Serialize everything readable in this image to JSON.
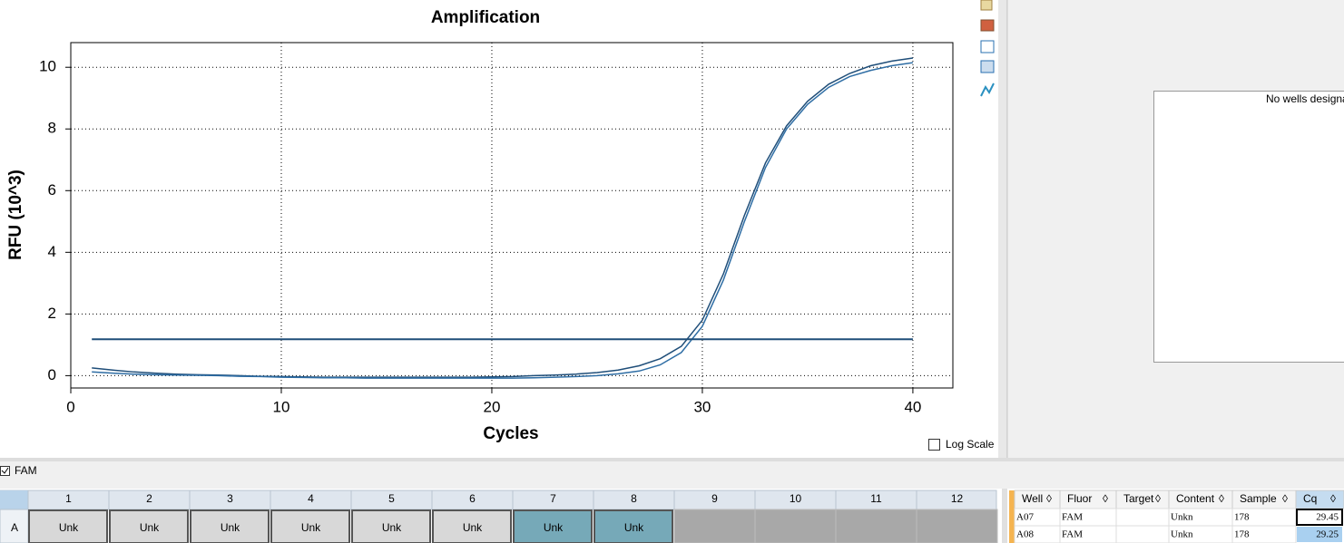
{
  "chart_data": {
    "type": "line",
    "title": "Amplification",
    "x_label": "Cycles",
    "y_label": "RFU (10^3)",
    "x": [
      1,
      2,
      3,
      4,
      5,
      6,
      7,
      8,
      9,
      10,
      11,
      12,
      13,
      14,
      15,
      16,
      17,
      18,
      19,
      20,
      21,
      22,
      23,
      24,
      25,
      26,
      27,
      28,
      29,
      30,
      31,
      32,
      33,
      34,
      35,
      36,
      37,
      38,
      39,
      40
    ],
    "series": [
      {
        "color": "#1f4e79",
        "values": [
          0.25,
          0.18,
          0.12,
          0.08,
          0.05,
          0.03,
          0.02,
          0.0,
          -0.02,
          -0.03,
          -0.04,
          -0.05,
          -0.05,
          -0.05,
          -0.05,
          -0.05,
          -0.05,
          -0.05,
          -0.05,
          -0.04,
          -0.03,
          0.0,
          0.02,
          0.05,
          0.1,
          0.18,
          0.32,
          0.55,
          0.95,
          1.8,
          3.3,
          5.2,
          6.9,
          8.1,
          8.9,
          9.45,
          9.8,
          10.05,
          10.2,
          10.3
        ]
      },
      {
        "color": "#2e6da4",
        "values": [
          0.12,
          0.08,
          0.05,
          0.03,
          0.02,
          0.01,
          0.0,
          -0.02,
          -0.03,
          -0.05,
          -0.06,
          -0.07,
          -0.07,
          -0.08,
          -0.08,
          -0.08,
          -0.08,
          -0.08,
          -0.08,
          -0.08,
          -0.08,
          -0.07,
          -0.05,
          -0.03,
          0.0,
          0.06,
          0.15,
          0.35,
          0.75,
          1.6,
          3.1,
          5.0,
          6.75,
          8.0,
          8.8,
          9.35,
          9.7,
          9.9,
          10.05,
          10.15
        ]
      }
    ],
    "threshold": 1.18,
    "threshold_color": "#1f4e79",
    "xlim": [
      0,
      41.9
    ],
    "ylim": [
      -0.4,
      10.8
    ],
    "xticks": [
      0,
      10,
      20,
      30,
      40
    ],
    "yticks": [
      0,
      2,
      4,
      6,
      8,
      10
    ],
    "grid": true,
    "log_scale": false,
    "log_scale_label": "Log Scale"
  },
  "side_panel": {
    "message": "No wells designate"
  },
  "fluor_filter": {
    "label": "FAM"
  },
  "plate": {
    "row": "A",
    "columns": [
      1,
      2,
      3,
      4,
      5,
      6,
      7,
      8,
      9,
      10,
      11,
      12
    ],
    "cells": [
      {
        "label": "Unk",
        "selected": false
      },
      {
        "label": "Unk",
        "selected": false
      },
      {
        "label": "Unk",
        "selected": false
      },
      {
        "label": "Unk",
        "selected": false
      },
      {
        "label": "Unk",
        "selected": false
      },
      {
        "label": "Unk",
        "selected": false
      },
      {
        "label": "Unk",
        "selected": true
      },
      {
        "label": "Unk",
        "selected": true
      }
    ]
  },
  "table": {
    "headers": [
      "Well",
      "Fluor",
      "Target",
      "Content",
      "Sample",
      "Cq"
    ],
    "rows": [
      {
        "Well": "A07",
        "Fluor": "FAM",
        "Content": "Unkn",
        "Sample": "178",
        "Cq": 29.45
      },
      {
        "Well": "A08",
        "Fluor": "FAM",
        "Content": "Unkn",
        "Sample": "178",
        "Cq": 29.25
      }
    ]
  }
}
